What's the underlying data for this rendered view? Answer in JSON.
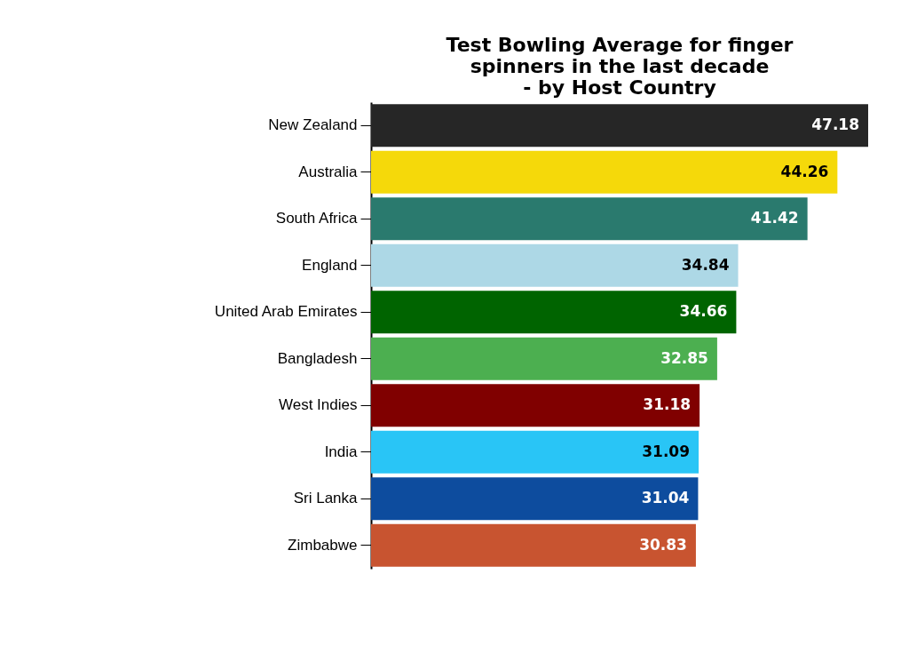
{
  "chart_data": {
    "type": "bar",
    "orientation": "horizontal",
    "title": "Test Bowling Average for finger\nspinners in the last decade\n- by Host Country",
    "categories": [
      "New Zealand",
      "Australia",
      "South Africa",
      "England",
      "United Arab Emirates",
      "Bangladesh",
      "West Indies",
      "India",
      "Sri Lanka",
      "Zimbabwe"
    ],
    "values": [
      47.18,
      44.26,
      41.42,
      34.84,
      34.66,
      32.85,
      31.18,
      31.09,
      31.04,
      30.83
    ],
    "colors": [
      "#262626",
      "#f5d90a",
      "#2a7a6e",
      "#add8e6",
      "#006400",
      "#4caf50",
      "#800000",
      "#29c5f6",
      "#0d4c9e",
      "#c85430"
    ],
    "data_labels": true,
    "grid": false,
    "tick_labels": "y"
  }
}
